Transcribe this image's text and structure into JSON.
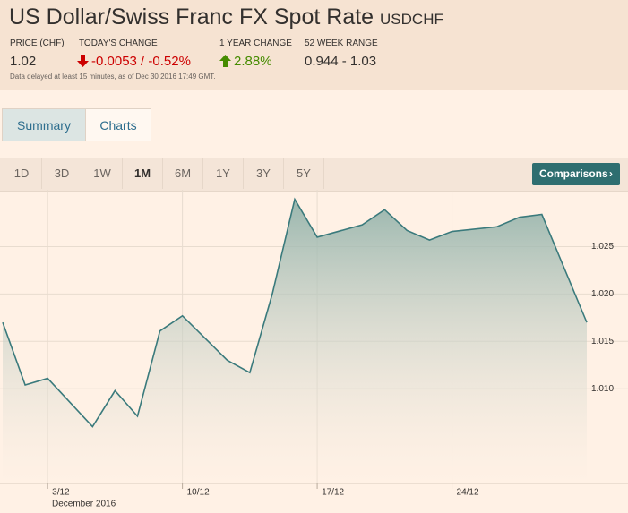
{
  "header": {
    "title": "US Dollar/Swiss Franc FX Spot Rate",
    "symbol": "USDCHF",
    "stats": [
      {
        "label": "PRICE (CHF)",
        "value": "1.02"
      },
      {
        "label": "TODAY'S CHANGE",
        "value": "-0.0053 / -0.52%"
      },
      {
        "label": "1 YEAR CHANGE",
        "value": "2.88%"
      },
      {
        "label": "52 WEEK RANGE",
        "value": "0.944 - 1.03"
      }
    ],
    "note": "Data delayed at least 15 minutes, as of Dec 30 2016 17:49 GMT."
  },
  "tabs": [
    "Summary",
    "Charts"
  ],
  "ranges": [
    "1D",
    "3D",
    "1W",
    "1M",
    "6M",
    "1Y",
    "3Y",
    "5Y"
  ],
  "comparisons": "Comparisons",
  "chart_data": {
    "type": "area",
    "x_label": "December 2016",
    "x": [
      0,
      1,
      2,
      4,
      5,
      6,
      7,
      8,
      10,
      11,
      12,
      13,
      14,
      16,
      17,
      18,
      19,
      20,
      22,
      23,
      24,
      26
    ],
    "values": [
      1.017,
      1.0104,
      1.0111,
      1.006,
      1.0098,
      1.0071,
      1.0161,
      1.0177,
      1.013,
      1.0117,
      1.02,
      1.03,
      1.026,
      1.0273,
      1.0289,
      1.0267,
      1.0257,
      1.0266,
      1.0271,
      1.0281,
      1.0284,
      1.017
    ],
    "color": "#3a7a7c",
    "xlim": [
      0,
      26
    ],
    "xticks": [
      {
        "value": 2,
        "label": "3/12"
      },
      {
        "value": 8,
        "label": "10/12"
      },
      {
        "value": 14,
        "label": "17/12"
      },
      {
        "value": 20,
        "label": "24/12"
      }
    ],
    "ylim": [
      1.0,
      1.031
    ],
    "yticks": [
      {
        "value": 1.01,
        "label": "1.010"
      },
      1.015,
      {
        "value": 1.02,
        "label": "1.020"
      },
      1.025
    ],
    "grid": true
  }
}
